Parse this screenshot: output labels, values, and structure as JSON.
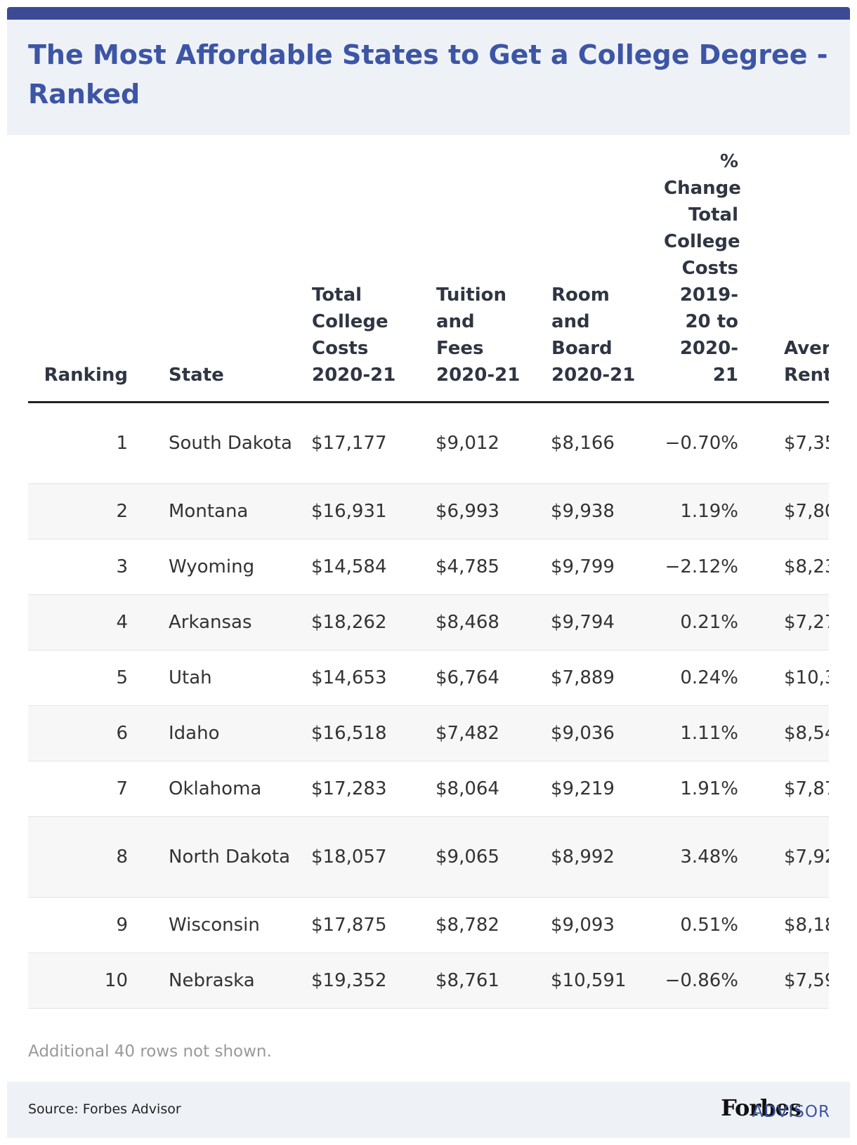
{
  "header": {
    "title": "The Most Affordable States to Get a College Degree - Ranked"
  },
  "table": {
    "columns": [
      "Ranking",
      "State",
      "Total College Costs 2020-21",
      "Tuition and Fees 2020-21",
      "Room and Board 2020-21",
      "% Change Total College Costs 2019-20 to 2020-21",
      "Aver Rent"
    ],
    "rows": [
      [
        "1",
        "South Dakota",
        "$17,177",
        "$9,012",
        "$8,166",
        "−0.70%",
        "$7,35"
      ],
      [
        "2",
        "Montana",
        "$16,931",
        "$6,993",
        "$9,938",
        "1.19%",
        "$7,80"
      ],
      [
        "3",
        "Wyoming",
        "$14,584",
        "$4,785",
        "$9,799",
        "−2.12%",
        "$8,23"
      ],
      [
        "4",
        "Arkansas",
        "$18,262",
        "$8,468",
        "$9,794",
        "0.21%",
        "$7,27"
      ],
      [
        "5",
        "Utah",
        "$14,653",
        "$6,764",
        "$7,889",
        "0.24%",
        "$10,3"
      ],
      [
        "6",
        "Idaho",
        "$16,518",
        "$7,482",
        "$9,036",
        "1.11%",
        "$8,54"
      ],
      [
        "7",
        "Oklahoma",
        "$17,283",
        "$8,064",
        "$9,219",
        "1.91%",
        "$7,87"
      ],
      [
        "8",
        "North Dakota",
        "$18,057",
        "$9,065",
        "$8,992",
        "3.48%",
        "$7,92"
      ],
      [
        "9",
        "Wisconsin",
        "$17,875",
        "$8,782",
        "$9,093",
        "0.51%",
        "$8,18"
      ],
      [
        "10",
        "Nebraska",
        "$19,352",
        "$8,761",
        "$10,591",
        "−0.86%",
        "$7,59"
      ]
    ],
    "note": "Additional 40 rows not shown."
  },
  "footer": {
    "source": "Source: Forbes Advisor",
    "logo": "Forbes",
    "logo_sub": "ADVISOR"
  }
}
